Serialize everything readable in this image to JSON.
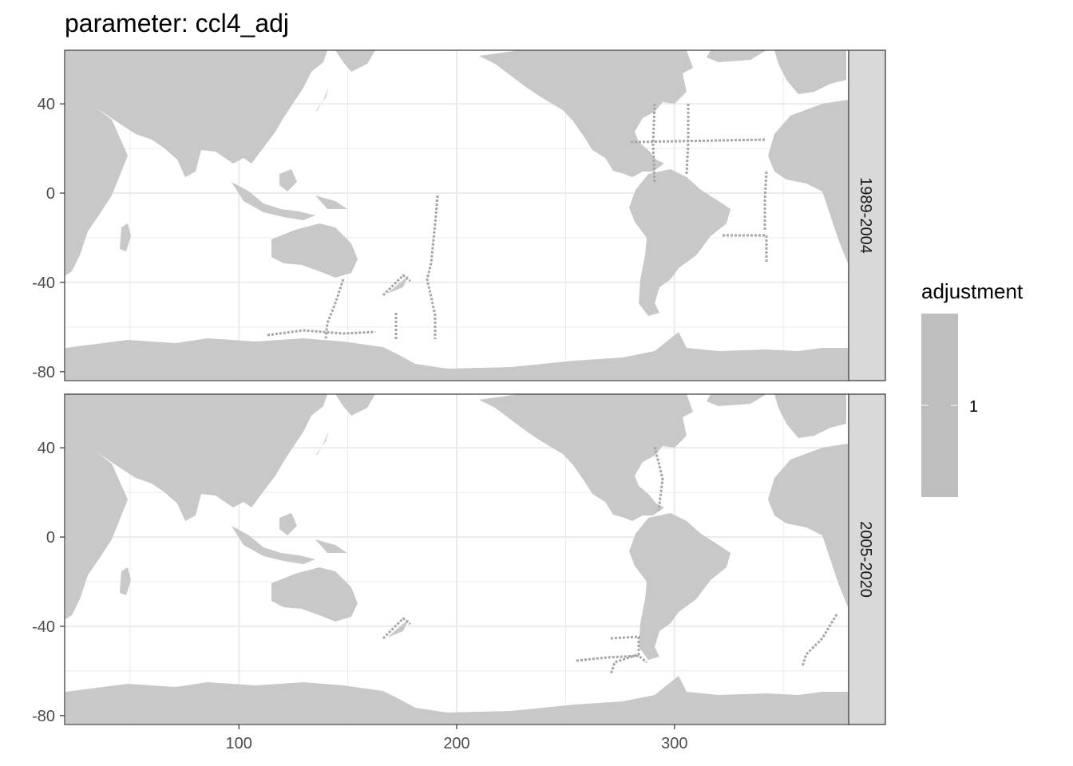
{
  "chart_data": {
    "type": "heatmap",
    "title": "parameter: ccl4_adj",
    "xlabel": "",
    "ylabel": "",
    "xlim": [
      20,
      380
    ],
    "ylim": [
      -84,
      64
    ],
    "x_ticks": [
      {
        "value": 100,
        "label": "100"
      },
      {
        "value": 200,
        "label": "200"
      },
      {
        "value": 300,
        "label": "300"
      }
    ],
    "y_ticks": [
      {
        "value": 40,
        "label": "40"
      },
      {
        "value": 0,
        "label": "0"
      },
      {
        "value": -40,
        "label": "-40"
      },
      {
        "value": -80,
        "label": "-80"
      }
    ],
    "grid": true,
    "facets": [
      "1989-2004",
      "2005-2020"
    ],
    "legend": {
      "title": "adjustment",
      "placement": "right",
      "labels": [
        "1"
      ],
      "values": [
        1
      ]
    },
    "colors": {
      "land": "#c8c8c8",
      "data": "#a6a6a6",
      "legend_fill": "#bebebe",
      "grid": "#ebebeb",
      "strip_fill": "#d9d9d9",
      "border": "#333333"
    }
  }
}
